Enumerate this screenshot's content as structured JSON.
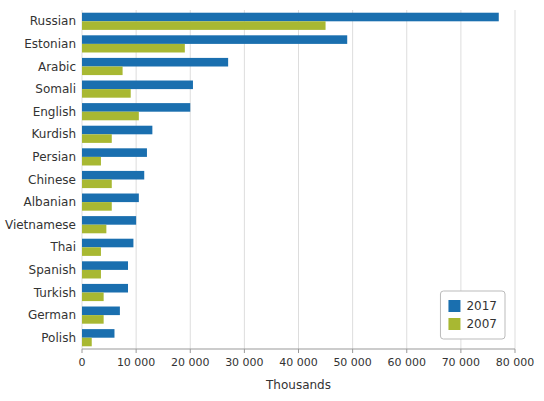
{
  "chart_data": {
    "type": "bar",
    "orientation": "horizontal",
    "categories": [
      "Russian",
      "Estonian",
      "Arabic",
      "Somali",
      "English",
      "Kurdish",
      "Persian",
      "Chinese",
      "Albanian",
      "Vietnamese",
      "Thai",
      "Spanish",
      "Turkish",
      "German",
      "Polish"
    ],
    "series": [
      {
        "name": "2017",
        "color": "#1a6faf",
        "values": [
          77000,
          49000,
          27000,
          20500,
          20000,
          13000,
          12000,
          11500,
          10500,
          10000,
          9500,
          8500,
          8500,
          7000,
          6000
        ]
      },
      {
        "name": "2007",
        "color": "#a8b832",
        "values": [
          45000,
          19000,
          7500,
          9000,
          10500,
          5500,
          3500,
          5500,
          5500,
          4500,
          3500,
          3500,
          4000,
          4000,
          1800
        ]
      }
    ],
    "xlabel": "Thousands",
    "xlim": [
      0,
      80000
    ],
    "xticks": [
      0,
      {
        "value": 10000,
        "label": "10 000"
      },
      {
        "value": 20000,
        "label": "20 000"
      },
      {
        "value": 30000,
        "label": "30 000"
      },
      {
        "value": 40000,
        "label": "40 000"
      },
      {
        "value": 50000,
        "label": "50 000"
      },
      {
        "value": 60000,
        "label": "60 000"
      },
      {
        "value": 70000,
        "label": "70 000"
      },
      {
        "value": 80000,
        "label": "80 000"
      }
    ],
    "grid": true,
    "legend": "lower right"
  }
}
